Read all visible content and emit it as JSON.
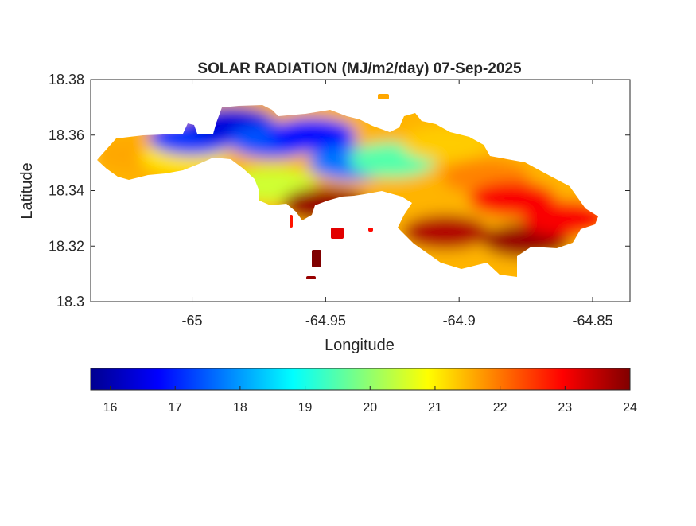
{
  "chart_data": {
    "type": "heatmap",
    "title": "SOLAR RADIATION (MJ/m2/day) 07-Sep-2025",
    "xlabel": "Longitude",
    "ylabel": "Latitude",
    "xlim": [
      -65.038,
      -64.836
    ],
    "ylim": [
      18.3,
      18.38
    ],
    "x_ticks": [
      -65,
      -64.95,
      -64.9,
      -64.85
    ],
    "x_tick_labels": [
      "-65",
      "-64.95",
      "-64.9",
      "-64.85"
    ],
    "y_ticks": [
      18.3,
      18.32,
      18.34,
      18.36,
      18.38
    ],
    "y_tick_labels": [
      "18.3",
      "18.32",
      "18.34",
      "18.36",
      "18.38"
    ],
    "colorbar": {
      "colormap": "jet",
      "range": [
        15.7,
        24.0
      ],
      "ticks": [
        16,
        17,
        18,
        19,
        20,
        21,
        22,
        23,
        24
      ],
      "tick_labels": [
        "16",
        "17",
        "18",
        "19",
        "20",
        "21",
        "22",
        "23",
        "24"
      ]
    },
    "regions": [
      {
        "lon": -65.02,
        "lat": 18.353,
        "value": 21.6
      },
      {
        "lon": -65.003,
        "lat": 18.352,
        "value": 21.1
      },
      {
        "lon": -65.0,
        "lat": 18.359,
        "value": 17.2
      },
      {
        "lon": -64.985,
        "lat": 18.364,
        "value": 16.4
      },
      {
        "lon": -64.97,
        "lat": 18.358,
        "value": 17.4
      },
      {
        "lon": -64.955,
        "lat": 18.36,
        "value": 16.8
      },
      {
        "lon": -64.94,
        "lat": 18.35,
        "value": 17.7
      },
      {
        "lon": -64.97,
        "lat": 18.342,
        "value": 20.5
      },
      {
        "lon": -64.95,
        "lat": 18.335,
        "value": 23.8
      },
      {
        "lon": -64.925,
        "lat": 18.351,
        "value": 19.5
      },
      {
        "lon": -64.905,
        "lat": 18.357,
        "value": 21.3
      },
      {
        "lon": -64.89,
        "lat": 18.345,
        "value": 21.9
      },
      {
        "lon": -64.88,
        "lat": 18.337,
        "value": 23.0
      },
      {
        "lon": -64.905,
        "lat": 18.325,
        "value": 23.6
      },
      {
        "lon": -64.875,
        "lat": 18.322,
        "value": 23.8
      },
      {
        "lon": -64.86,
        "lat": 18.33,
        "value": 23.0
      }
    ],
    "grid": false
  }
}
